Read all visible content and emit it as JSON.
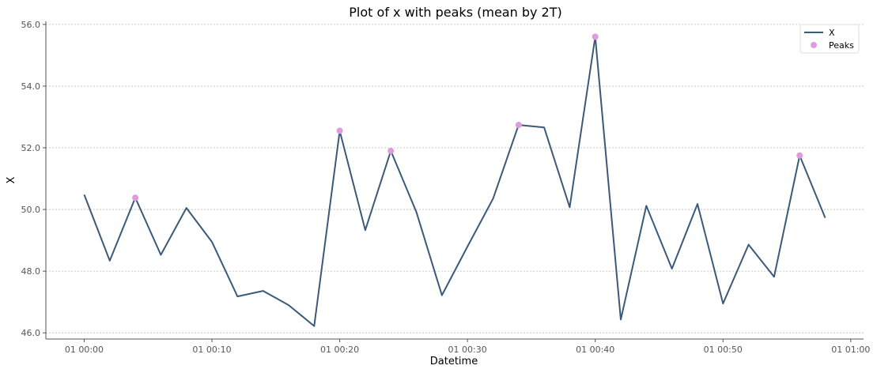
{
  "chart_data": {
    "type": "line",
    "title": "Plot of x with peaks (mean by 2T)",
    "xlabel": "Datetime",
    "ylabel": "X",
    "x_unit": "minutes",
    "x": [
      0,
      2,
      4,
      6,
      8,
      10,
      12,
      14,
      16,
      18,
      20,
      22,
      24,
      26,
      28,
      30,
      32,
      34,
      36,
      38,
      40,
      42,
      44,
      46,
      48,
      50,
      52,
      54,
      56,
      58
    ],
    "xticks": [
      0,
      10,
      20,
      30,
      40,
      50,
      60
    ],
    "xtick_labels": [
      "01 00:00",
      "01 00:10",
      "01 00:20",
      "01 00:30",
      "01 00:40",
      "01 00:50",
      "01 01:00"
    ],
    "xlim": [
      -3,
      61
    ],
    "ylim": [
      45.8,
      56.1
    ],
    "yticks": [
      46.0,
      48.0,
      50.0,
      52.0,
      54.0,
      56.0
    ],
    "ytick_labels": [
      "46.0",
      "48.0",
      "50.0",
      "52.0",
      "54.0",
      "56.0"
    ],
    "grid": "horizontal",
    "legend_position": "top-right",
    "series": [
      {
        "name": "X",
        "kind": "line",
        "color": "#3c5a78",
        "x": [
          0,
          2,
          4,
          6,
          8,
          10,
          12,
          14,
          16,
          18,
          20,
          22,
          24,
          26,
          28,
          30,
          32,
          34,
          36,
          38,
          40,
          42,
          44,
          46,
          48,
          50,
          52,
          54,
          56,
          58
        ],
        "values": [
          50.48,
          48.34,
          50.38,
          48.53,
          50.05,
          48.95,
          47.18,
          47.36,
          46.9,
          46.22,
          52.55,
          49.33,
          51.9,
          49.92,
          47.22,
          48.8,
          50.35,
          52.74,
          52.66,
          50.07,
          55.6,
          46.43,
          50.12,
          48.08,
          50.18,
          46.95,
          48.86,
          47.82,
          51.75,
          49.73
        ]
      },
      {
        "name": "Peaks",
        "kind": "scatter",
        "color": "#dd9ddd",
        "x": [
          4,
          20,
          24,
          34,
          40,
          56
        ],
        "values": [
          50.38,
          52.55,
          51.9,
          52.74,
          55.6,
          51.75
        ]
      }
    ]
  }
}
